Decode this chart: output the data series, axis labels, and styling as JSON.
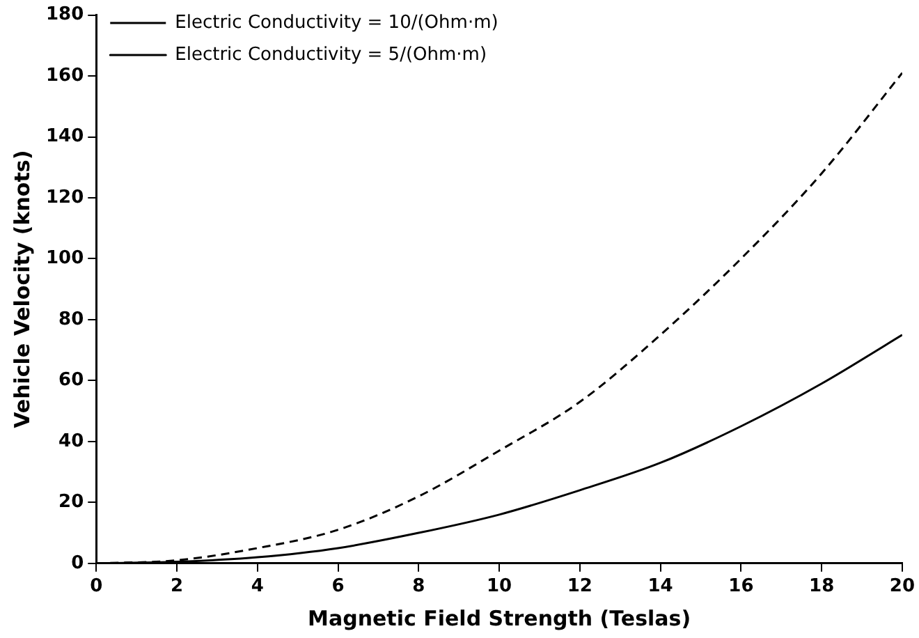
{
  "chart_data": {
    "type": "line",
    "xlabel": "Magnetic Field Strength (Teslas)",
    "ylabel": "Vehicle Velocity (knots)",
    "x": [
      0,
      2,
      4,
      6,
      8,
      10,
      12,
      14,
      16,
      18,
      20
    ],
    "series": [
      {
        "name": "Electric Conductivity = 10/(Ohm·m)",
        "color": "#000000",
        "line_style": "dashed",
        "values": [
          0,
          1,
          5,
          11,
          22,
          37,
          53,
          75,
          100,
          128,
          161
        ]
      },
      {
        "name": "Electric Conductivity = 5/(Ohm·m)",
        "color": "#000000",
        "line_style": "solid",
        "values": [
          0,
          0.5,
          2,
          5,
          10,
          16,
          24,
          33,
          45,
          59,
          75
        ]
      }
    ],
    "xlim": [
      0,
      20
    ],
    "xticks": [
      0,
      2,
      4,
      6,
      8,
      10,
      12,
      14,
      16,
      18,
      20
    ],
    "ylim": [
      0,
      180
    ],
    "yticks": [
      0,
      20,
      40,
      60,
      80,
      100,
      120,
      140,
      160,
      180
    ],
    "grid": false,
    "legend": "top left",
    "marker": "none"
  }
}
